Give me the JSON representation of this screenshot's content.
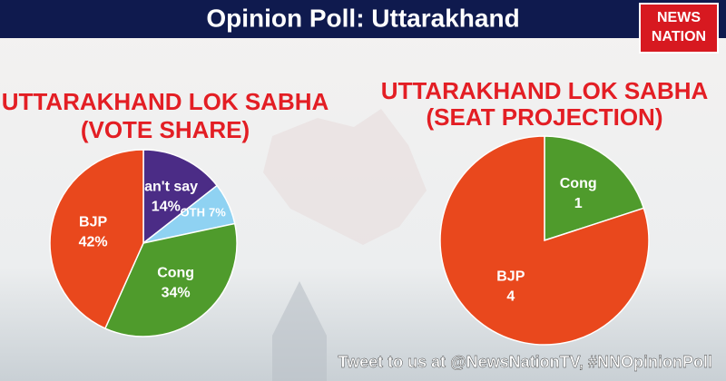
{
  "header": {
    "title": "Opinion Poll: Uttarakhand",
    "logo": [
      "NEWS",
      "NATION"
    ]
  },
  "footer": "Tweet to us at @NewsNationTV, #NNOpinionPoll",
  "chart_data": [
    {
      "type": "pie",
      "title": "UTTARAKHAND LOK SABHA",
      "subtitle": "(VOTE SHARE)",
      "categories": [
        "Can't say",
        "OTH",
        "Cong",
        "BJP"
      ],
      "values": [
        14,
        7,
        34,
        42
      ],
      "value_labels": [
        "14%",
        "7%",
        "34%",
        "42%"
      ],
      "colors": [
        "#4b2c86",
        "#8fd2f2",
        "#4f9b2c",
        "#e9481d"
      ]
    },
    {
      "type": "pie",
      "title": "UTTARAKHAND LOK SABHA",
      "subtitle": "(SEAT PROJECTION)",
      "categories": [
        "Cong",
        "BJP"
      ],
      "values": [
        1,
        4
      ],
      "colors": [
        "#4f9b2c",
        "#e9481d"
      ]
    }
  ]
}
